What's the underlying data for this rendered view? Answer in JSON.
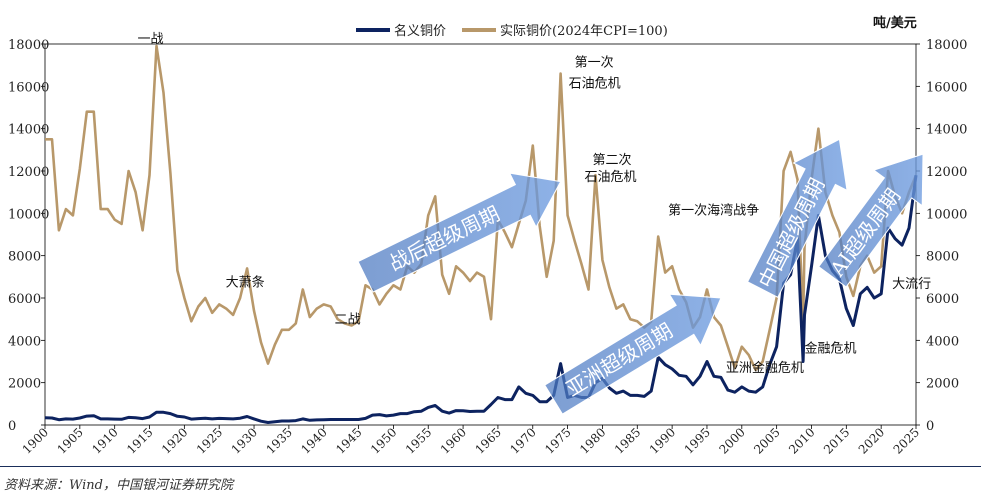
{
  "chart_data": {
    "type": "line",
    "unit_label": "吨/美元",
    "ylim": [
      0,
      18000
    ],
    "y_ticks": [
      0,
      2000,
      4000,
      6000,
      8000,
      10000,
      12000,
      14000,
      16000,
      18000
    ],
    "x_range": [
      1900,
      2025
    ],
    "x_ticks": [
      1900,
      1905,
      1910,
      1915,
      1920,
      1925,
      1930,
      1935,
      1940,
      1945,
      1950,
      1955,
      1960,
      1965,
      1970,
      1975,
      1980,
      1985,
      1990,
      1995,
      2000,
      2005,
      2010,
      2015,
      2020,
      2025
    ],
    "series": [
      {
        "name": "名义铜价",
        "color": "#0d2360",
        "points": [
          [
            1900,
            340
          ],
          [
            1901,
            330
          ],
          [
            1902,
            250
          ],
          [
            1903,
            290
          ],
          [
            1904,
            280
          ],
          [
            1905,
            330
          ],
          [
            1906,
            420
          ],
          [
            1907,
            440
          ],
          [
            1908,
            290
          ],
          [
            1909,
            290
          ],
          [
            1910,
            280
          ],
          [
            1911,
            270
          ],
          [
            1912,
            360
          ],
          [
            1913,
            340
          ],
          [
            1914,
            300
          ],
          [
            1915,
            380
          ],
          [
            1916,
            600
          ],
          [
            1917,
            600
          ],
          [
            1918,
            540
          ],
          [
            1919,
            410
          ],
          [
            1920,
            380
          ],
          [
            1921,
            280
          ],
          [
            1922,
            300
          ],
          [
            1923,
            320
          ],
          [
            1924,
            290
          ],
          [
            1925,
            310
          ],
          [
            1926,
            300
          ],
          [
            1927,
            290
          ],
          [
            1928,
            320
          ],
          [
            1929,
            400
          ],
          [
            1930,
            290
          ],
          [
            1931,
            180
          ],
          [
            1932,
            120
          ],
          [
            1933,
            150
          ],
          [
            1934,
            190
          ],
          [
            1935,
            190
          ],
          [
            1936,
            210
          ],
          [
            1937,
            290
          ],
          [
            1938,
            220
          ],
          [
            1939,
            240
          ],
          [
            1940,
            250
          ],
          [
            1941,
            260
          ],
          [
            1942,
            260
          ],
          [
            1943,
            260
          ],
          [
            1944,
            260
          ],
          [
            1945,
            260
          ],
          [
            1946,
            310
          ],
          [
            1947,
            470
          ],
          [
            1948,
            490
          ],
          [
            1949,
            430
          ],
          [
            1950,
            470
          ],
          [
            1951,
            540
          ],
          [
            1952,
            540
          ],
          [
            1953,
            630
          ],
          [
            1954,
            650
          ],
          [
            1955,
            830
          ],
          [
            1956,
            920
          ],
          [
            1957,
            650
          ],
          [
            1958,
            560
          ],
          [
            1959,
            680
          ],
          [
            1960,
            670
          ],
          [
            1961,
            640
          ],
          [
            1962,
            650
          ],
          [
            1963,
            650
          ],
          [
            1964,
            970
          ],
          [
            1965,
            1300
          ],
          [
            1966,
            1200
          ],
          [
            1967,
            1200
          ],
          [
            1968,
            1800
          ],
          [
            1969,
            1500
          ],
          [
            1970,
            1400
          ],
          [
            1971,
            1100
          ],
          [
            1972,
            1100
          ],
          [
            1973,
            1400
          ],
          [
            1974,
            2900
          ],
          [
            1975,
            1300
          ],
          [
            1976,
            1400
          ],
          [
            1977,
            1300
          ],
          [
            1978,
            1300
          ],
          [
            1979,
            2000
          ],
          [
            1980,
            2200
          ],
          [
            1981,
            1750
          ],
          [
            1982,
            1500
          ],
          [
            1983,
            1600
          ],
          [
            1984,
            1400
          ],
          [
            1985,
            1400
          ],
          [
            1986,
            1350
          ],
          [
            1987,
            1600
          ],
          [
            1988,
            3200
          ],
          [
            1989,
            2850
          ],
          [
            1990,
            2650
          ],
          [
            1991,
            2350
          ],
          [
            1992,
            2300
          ],
          [
            1993,
            1900
          ],
          [
            1994,
            2300
          ],
          [
            1995,
            3000
          ],
          [
            1996,
            2300
          ],
          [
            1997,
            2250
          ],
          [
            1998,
            1650
          ],
          [
            1999,
            1550
          ],
          [
            2000,
            1800
          ],
          [
            2001,
            1600
          ],
          [
            2002,
            1550
          ],
          [
            2003,
            1800
          ],
          [
            2004,
            2850
          ],
          [
            2005,
            3700
          ],
          [
            2006,
            6700
          ],
          [
            2007,
            7100
          ],
          [
            2008,
            8800
          ],
          [
            2008.8,
            3000
          ],
          [
            2009,
            5200
          ],
          [
            2010,
            7500
          ],
          [
            2011,
            9900
          ],
          [
            2012,
            8000
          ],
          [
            2013,
            7300
          ],
          [
            2014,
            6900
          ],
          [
            2015,
            5500
          ],
          [
            2016,
            4700
          ],
          [
            2017,
            6200
          ],
          [
            2018,
            6500
          ],
          [
            2019,
            6000
          ],
          [
            2020,
            6200
          ],
          [
            2021,
            9300
          ],
          [
            2022,
            8800
          ],
          [
            2023,
            8500
          ],
          [
            2024,
            9300
          ],
          [
            2025,
            11800
          ]
        ]
      },
      {
        "name": "实际铜价(2024年CPI=100)",
        "color": "#b8986a",
        "points": [
          [
            1900,
            13500
          ],
          [
            1901,
            13500
          ],
          [
            1902,
            9200
          ],
          [
            1903,
            10200
          ],
          [
            1904,
            9900
          ],
          [
            1905,
            12100
          ],
          [
            1906,
            14800
          ],
          [
            1907,
            14800
          ],
          [
            1908,
            10200
          ],
          [
            1909,
            10200
          ],
          [
            1910,
            9700
          ],
          [
            1911,
            9500
          ],
          [
            1912,
            12000
          ],
          [
            1913,
            11000
          ],
          [
            1914,
            9200
          ],
          [
            1915,
            11800
          ],
          [
            1916,
            17900
          ],
          [
            1917,
            15700
          ],
          [
            1918,
            11900
          ],
          [
            1919,
            7300
          ],
          [
            1920,
            6000
          ],
          [
            1921,
            4900
          ],
          [
            1922,
            5600
          ],
          [
            1923,
            6000
          ],
          [
            1924,
            5300
          ],
          [
            1925,
            5700
          ],
          [
            1926,
            5500
          ],
          [
            1927,
            5200
          ],
          [
            1928,
            6000
          ],
          [
            1929,
            7400
          ],
          [
            1930,
            5400
          ],
          [
            1931,
            3900
          ],
          [
            1932,
            2900
          ],
          [
            1933,
            3800
          ],
          [
            1934,
            4500
          ],
          [
            1935,
            4500
          ],
          [
            1936,
            4800
          ],
          [
            1937,
            6400
          ],
          [
            1938,
            5100
          ],
          [
            1939,
            5500
          ],
          [
            1940,
            5700
          ],
          [
            1941,
            5600
          ],
          [
            1942,
            5000
          ],
          [
            1943,
            4800
          ],
          [
            1944,
            4700
          ],
          [
            1945,
            4900
          ],
          [
            1946,
            6600
          ],
          [
            1947,
            6400
          ],
          [
            1948,
            5700
          ],
          [
            1949,
            6200
          ],
          [
            1950,
            6600
          ],
          [
            1951,
            6400
          ],
          [
            1952,
            7500
          ],
          [
            1953,
            7200
          ],
          [
            1954,
            7600
          ],
          [
            1955,
            9900
          ],
          [
            1956,
            10800
          ],
          [
            1957,
            7100
          ],
          [
            1958,
            6200
          ],
          [
            1959,
            7500
          ],
          [
            1960,
            7200
          ],
          [
            1961,
            6800
          ],
          [
            1962,
            7200
          ],
          [
            1963,
            7000
          ],
          [
            1964,
            5000
          ],
          [
            1965,
            9700
          ],
          [
            1966,
            9100
          ],
          [
            1967,
            8400
          ],
          [
            1968,
            9500
          ],
          [
            1969,
            10600
          ],
          [
            1970,
            13200
          ],
          [
            1971,
            9400
          ],
          [
            1972,
            7000
          ],
          [
            1973,
            8700
          ],
          [
            1974,
            16600
          ],
          [
            1975,
            9900
          ],
          [
            1976,
            8700
          ],
          [
            1977,
            7600
          ],
          [
            1978,
            6400
          ],
          [
            1979,
            11800
          ],
          [
            1980,
            7800
          ],
          [
            1981,
            6500
          ],
          [
            1982,
            5500
          ],
          [
            1983,
            5700
          ],
          [
            1984,
            5000
          ],
          [
            1985,
            4900
          ],
          [
            1986,
            4600
          ],
          [
            1987,
            4900
          ],
          [
            1988,
            8900
          ],
          [
            1989,
            7200
          ],
          [
            1990,
            7500
          ],
          [
            1991,
            6400
          ],
          [
            1992,
            5800
          ],
          [
            1993,
            4600
          ],
          [
            1994,
            5100
          ],
          [
            1995,
            6400
          ],
          [
            1996,
            5100
          ],
          [
            1997,
            4700
          ],
          [
            1998,
            3700
          ],
          [
            1999,
            2700
          ],
          [
            2000,
            3700
          ],
          [
            2001,
            3300
          ],
          [
            2002,
            2600
          ],
          [
            2003,
            3000
          ],
          [
            2004,
            4500
          ],
          [
            2005,
            6000
          ],
          [
            2006,
            12000
          ],
          [
            2007,
            12900
          ],
          [
            2008,
            11600
          ],
          [
            2008.8,
            4800
          ],
          [
            2009,
            8400
          ],
          [
            2010,
            11600
          ],
          [
            2011,
            14000
          ],
          [
            2012,
            11000
          ],
          [
            2013,
            9900
          ],
          [
            2014,
            9100
          ],
          [
            2015,
            7000
          ],
          [
            2016,
            6100
          ],
          [
            2017,
            7500
          ],
          [
            2018,
            8000
          ],
          [
            2019,
            7200
          ],
          [
            2020,
            7500
          ],
          [
            2021,
            12000
          ],
          [
            2022,
            10800
          ],
          [
            2023,
            10000
          ],
          [
            2024,
            11000
          ],
          [
            2025,
            11800
          ]
        ]
      }
    ],
    "annotations": [
      {
        "text": "一战",
        "x": 1916,
        "y": 17900
      },
      {
        "text": "大萧条",
        "x": 1929,
        "y": 7400
      },
      {
        "text": "二战",
        "x": 1944,
        "y": 4700
      },
      {
        "text": "第一次",
        "x": 1974,
        "y": 16600
      },
      {
        "text": "石油危机",
        "x": 1974,
        "y": 16600
      },
      {
        "text": "第二次",
        "x": 1979,
        "y": 11800
      },
      {
        "text": "石油危机",
        "x": 1979,
        "y": 11800
      },
      {
        "text": "第一次海湾战争",
        "x": 1990,
        "y": 8900
      },
      {
        "text": "金融危机",
        "x": 2008,
        "y": 3000
      },
      {
        "text": "亚洲金融危机",
        "x": 1998,
        "y": 1650
      },
      {
        "text": "大流行",
        "x": 2020,
        "y": 6000
      }
    ],
    "arrows": [
      {
        "text": "战后超级周期",
        "from": [
          1946,
          7000
        ],
        "to": [
          1974,
          11500
        ]
      },
      {
        "text": "亚洲超级周期",
        "from": [
          1973,
          1200
        ],
        "to": [
          1997,
          6000
        ]
      },
      {
        "text": "中国超级周期",
        "from": [
          2003,
          6400
        ],
        "to": [
          2014,
          13500
        ]
      },
      {
        "text": "AI超级周期",
        "from": [
          2013,
          7000
        ],
        "to": [
          2026,
          12800
        ]
      }
    ]
  },
  "source": "资料来源：Wind，中国银河证券研究院"
}
